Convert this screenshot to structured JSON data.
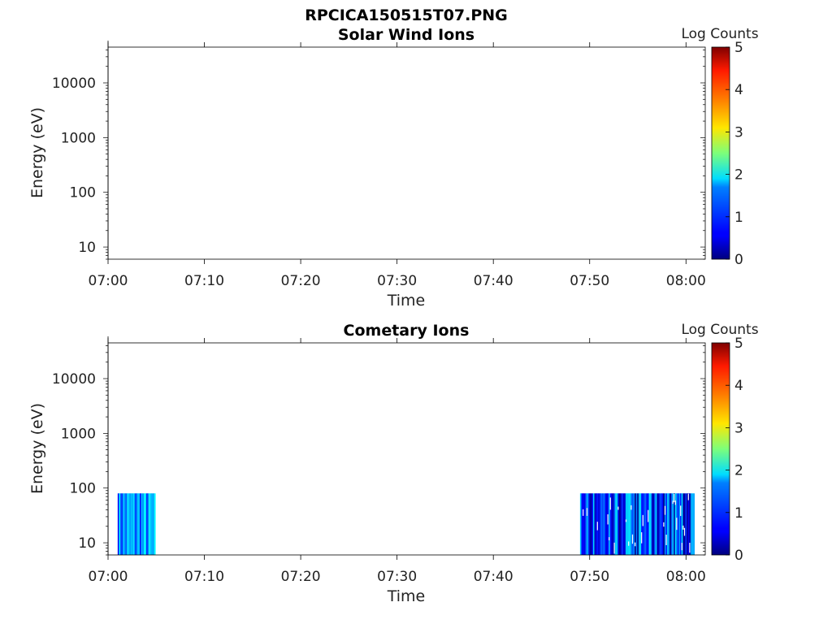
{
  "figure_title": "RPCICA150515T07.PNG",
  "chart_data": [
    {
      "type": "heatmap",
      "title": "Solar Wind Ions",
      "xlabel": "Time",
      "ylabel": "Energy (eV)",
      "x_range": [
        "07:00",
        "08:02"
      ],
      "x_ticks": [
        "07:00",
        "07:10",
        "07:20",
        "07:30",
        "07:40",
        "07:50",
        "08:00"
      ],
      "y_scale": "log",
      "y_range": [
        6,
        45000
      ],
      "y_ticks": [
        "10",
        "100",
        "1000",
        "10000"
      ],
      "colorbar_label": "Log Counts",
      "colorbar_range": [
        0,
        5
      ],
      "colorbar_ticks": [
        "0",
        "1",
        "2",
        "3",
        "4",
        "5"
      ],
      "colormap": "jet",
      "data_blocks": []
    },
    {
      "type": "heatmap",
      "title": "Cometary Ions",
      "xlabel": "Time",
      "ylabel": "Energy (eV)",
      "x_range": [
        "07:00",
        "08:02"
      ],
      "x_ticks": [
        "07:00",
        "07:10",
        "07:20",
        "07:30",
        "07:40",
        "07:50",
        "08:00"
      ],
      "y_scale": "log",
      "y_range": [
        6,
        45000
      ],
      "y_ticks": [
        "10",
        "100",
        "1000",
        "10000"
      ],
      "colorbar_label": "Log Counts",
      "colorbar_range": [
        0,
        5
      ],
      "colorbar_ticks": [
        "0",
        "1",
        "2",
        "3",
        "4",
        "5"
      ],
      "colormap": "jet",
      "data_blocks": [
        {
          "time_start": "07:01",
          "time_end": "07:05",
          "energy_min": 6,
          "energy_max": 80,
          "log_counts_range": [
            0.6,
            2.0
          ]
        },
        {
          "time_start": "07:49",
          "time_end": "08:01",
          "energy_min": 6,
          "energy_max": 80,
          "log_counts_range": [
            0.0,
            1.8
          ]
        }
      ]
    }
  ]
}
